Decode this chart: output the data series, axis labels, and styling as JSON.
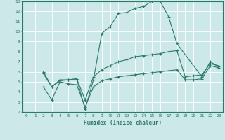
{
  "xlabel": "Humidex (Indice chaleur)",
  "xlim": [
    -0.5,
    23.5
  ],
  "ylim": [
    2,
    13
  ],
  "xticks": [
    0,
    1,
    2,
    3,
    4,
    5,
    6,
    7,
    8,
    9,
    10,
    11,
    12,
    13,
    14,
    15,
    16,
    17,
    18,
    19,
    20,
    21,
    22,
    23
  ],
  "yticks": [
    2,
    3,
    4,
    5,
    6,
    7,
    8,
    9,
    10,
    11,
    12,
    13
  ],
  "bg_color": "#cce8e8",
  "grid_color": "#ffffff",
  "line_color": "#2a7a6a",
  "lines": [
    {
      "x": [
        2,
        3,
        4,
        5,
        6,
        7,
        8,
        9,
        10,
        11,
        12,
        13,
        14,
        15,
        16,
        17,
        18,
        21,
        22,
        23
      ],
      "y": [
        6.0,
        4.5,
        5.1,
        5.2,
        5.3,
        2.3,
        5.2,
        9.8,
        10.5,
        11.8,
        11.9,
        12.3,
        12.5,
        13.0,
        13.0,
        11.5,
        8.8,
        5.5,
        7.0,
        6.5
      ]
    },
    {
      "x": [
        2,
        3,
        4,
        5,
        6,
        7,
        8,
        9,
        10,
        11,
        12,
        13,
        14,
        15,
        16,
        17,
        18,
        19,
        20,
        21,
        22,
        23
      ],
      "y": [
        5.8,
        4.5,
        5.2,
        5.2,
        5.3,
        3.2,
        5.5,
        6.2,
        6.6,
        7.0,
        7.2,
        7.5,
        7.6,
        7.7,
        7.8,
        8.0,
        8.1,
        5.5,
        5.6,
        5.7,
        6.8,
        6.6
      ]
    },
    {
      "x": [
        2,
        3,
        4,
        5,
        6,
        7,
        8,
        9,
        10,
        11,
        12,
        13,
        14,
        15,
        16,
        17,
        18,
        19,
        20,
        21,
        22,
        23
      ],
      "y": [
        4.5,
        3.2,
        5.0,
        4.8,
        4.7,
        2.5,
        4.5,
        5.1,
        5.3,
        5.5,
        5.6,
        5.7,
        5.8,
        5.9,
        6.0,
        6.1,
        6.2,
        5.2,
        5.2,
        5.3,
        6.6,
        6.4
      ]
    }
  ]
}
